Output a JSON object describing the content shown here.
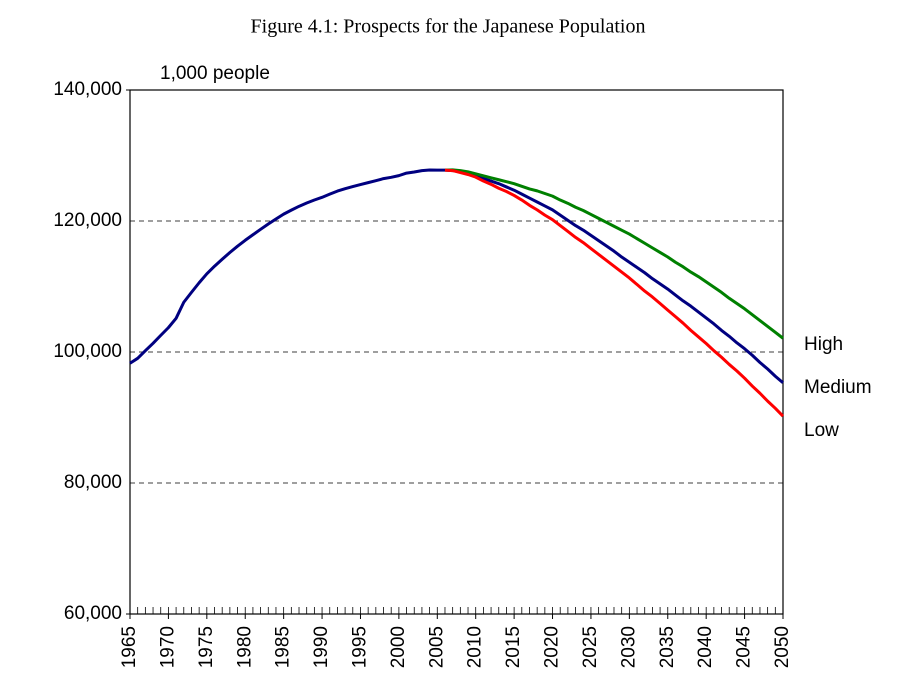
{
  "chart_data": {
    "type": "line",
    "title": "Figure 4.1: Prospects for the Japanese Population",
    "y_label": "1,000 people",
    "x": [
      1965,
      1966,
      1967,
      1968,
      1969,
      1970,
      1971,
      1972,
      1973,
      1974,
      1975,
      1976,
      1977,
      1978,
      1979,
      1980,
      1981,
      1982,
      1983,
      1984,
      1985,
      1986,
      1987,
      1988,
      1989,
      1990,
      1991,
      1992,
      1993,
      1994,
      1995,
      1996,
      1997,
      1998,
      1999,
      2000,
      2001,
      2002,
      2003,
      2004,
      2005,
      2006,
      2007,
      2008,
      2009,
      2010,
      2011,
      2012,
      2013,
      2014,
      2015,
      2016,
      2017,
      2018,
      2019,
      2020,
      2021,
      2022,
      2023,
      2024,
      2025,
      2026,
      2027,
      2028,
      2029,
      2030,
      2031,
      2032,
      2033,
      2034,
      2035,
      2036,
      2037,
      2038,
      2039,
      2040,
      2041,
      2042,
      2043,
      2044,
      2045,
      2046,
      2047,
      2048,
      2049,
      2050
    ],
    "series": [
      {
        "name": "Medium",
        "color": "#000080",
        "values": [
          98275,
          99036,
          100196,
          101331,
          102536,
          103720,
          105145,
          107595,
          109104,
          110573,
          111940,
          113094,
          114165,
          115190,
          116155,
          117060,
          117902,
          118728,
          119536,
          120305,
          121049,
          121660,
          122239,
          122745,
          123205,
          123611,
          124101,
          124567,
          124938,
          125265,
          125570,
          125859,
          126157,
          126472,
          126667,
          126926,
          127316,
          127486,
          127694,
          127787,
          127768,
          127770,
          127700,
          127500,
          127250,
          126900,
          126500,
          126100,
          125700,
          125200,
          124700,
          124100,
          123500,
          122900,
          122300,
          121700,
          120900,
          120100,
          119300,
          118600,
          117800,
          117000,
          116200,
          115400,
          114500,
          113700,
          112900,
          112100,
          111200,
          110400,
          109600,
          108700,
          107800,
          107000,
          106100,
          105200,
          104300,
          103300,
          102400,
          101400,
          100500,
          99500,
          98400,
          97400,
          96300,
          95300
        ]
      },
      {
        "name": "High",
        "color": "#008000",
        "values": [
          null,
          null,
          null,
          null,
          null,
          null,
          null,
          null,
          null,
          null,
          null,
          null,
          null,
          null,
          null,
          null,
          null,
          null,
          null,
          null,
          null,
          null,
          null,
          null,
          null,
          null,
          null,
          null,
          null,
          null,
          null,
          null,
          null,
          null,
          null,
          null,
          null,
          null,
          null,
          null,
          null,
          127770,
          127800,
          127700,
          127500,
          127200,
          126900,
          126600,
          126300,
          126000,
          125700,
          125300,
          124900,
          124600,
          124200,
          123800,
          123200,
          122700,
          122100,
          121600,
          121000,
          120400,
          119800,
          119200,
          118600,
          118000,
          117300,
          116600,
          115900,
          115200,
          114500,
          113700,
          113000,
          112200,
          111500,
          110700,
          109900,
          109100,
          108200,
          107400,
          106600,
          105700,
          104800,
          103900,
          103000,
          102100
        ]
      },
      {
        "name": "Low",
        "color": "#ff0000",
        "values": [
          null,
          null,
          null,
          null,
          null,
          null,
          null,
          null,
          null,
          null,
          null,
          null,
          null,
          null,
          null,
          null,
          null,
          null,
          null,
          null,
          null,
          null,
          null,
          null,
          null,
          null,
          null,
          null,
          null,
          null,
          null,
          null,
          null,
          null,
          null,
          null,
          null,
          null,
          null,
          null,
          null,
          127770,
          127700,
          127400,
          127100,
          126700,
          126100,
          125600,
          125000,
          124500,
          123900,
          123200,
          122400,
          121700,
          120900,
          120200,
          119300,
          118400,
          117500,
          116700,
          115800,
          114900,
          114000,
          113100,
          112200,
          111300,
          110300,
          109300,
          108400,
          107400,
          106400,
          105400,
          104400,
          103300,
          102300,
          101300,
          100200,
          99200,
          98100,
          97100,
          96000,
          94800,
          93700,
          92500,
          91400,
          90200
        ]
      }
    ],
    "xlim": [
      1965,
      2050
    ],
    "xticks": [
      1965,
      1970,
      1975,
      1980,
      1985,
      1990,
      1995,
      2000,
      2005,
      2010,
      2015,
      2020,
      2025,
      2030,
      2035,
      2040,
      2045,
      2050
    ],
    "ylim": [
      60000,
      140000
    ],
    "yticks": [
      {
        "value": 60000,
        "label": "60,000"
      },
      {
        "value": 80000,
        "label": "80,000"
      },
      {
        "value": 100000,
        "label": "100,000"
      },
      {
        "value": 120000,
        "label": "120,000"
      },
      {
        "value": 140000,
        "label": "140,000"
      }
    ],
    "grid": true
  }
}
